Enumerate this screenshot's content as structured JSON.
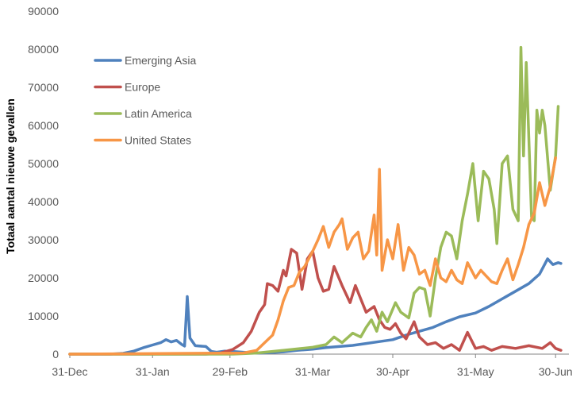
{
  "chart_data": {
    "type": "line",
    "ylabel": "Totaal aantal nieuwe gevallen",
    "xlabel": "",
    "ylim": [
      0,
      90000
    ],
    "yticks": [
      0,
      10000,
      20000,
      30000,
      40000,
      50000,
      60000,
      70000,
      80000,
      90000
    ],
    "ytick_labels": [
      "0",
      "10000",
      "20000",
      "30000",
      "40000",
      "50000",
      "60000",
      "70000",
      "80000",
      "90000"
    ],
    "xlim": [
      "2019-12-31",
      "2020-07-05"
    ],
    "xticks": [
      "2019-12-31",
      "2020-01-31",
      "2020-02-29",
      "2020-03-31",
      "2020-04-30",
      "2020-05-31",
      "2020-06-30"
    ],
    "xtick_labels": [
      "31-Dec",
      "31-Jan",
      "29-Feb",
      "31-Mar",
      "30-Apr",
      "31-May",
      "30-Jun"
    ],
    "grid": false,
    "legend_position": "top-left",
    "series": [
      {
        "name": "Emerging Asia",
        "color": "#4f81bd",
        "points": [
          [
            "2019-12-31",
            0
          ],
          [
            "2020-01-15",
            0
          ],
          [
            "2020-01-20",
            200
          ],
          [
            "2020-01-24",
            800
          ],
          [
            "2020-01-28",
            1800
          ],
          [
            "2020-01-31",
            2400
          ],
          [
            "2020-02-03",
            3000
          ],
          [
            "2020-02-05",
            3800
          ],
          [
            "2020-02-07",
            3200
          ],
          [
            "2020-02-09",
            3600
          ],
          [
            "2020-02-11",
            2500
          ],
          [
            "2020-02-12",
            2100
          ],
          [
            "2020-02-13",
            15100
          ],
          [
            "2020-02-14",
            4200
          ],
          [
            "2020-02-16",
            2200
          ],
          [
            "2020-02-20",
            2000
          ],
          [
            "2020-02-22",
            700
          ],
          [
            "2020-02-24",
            500
          ],
          [
            "2020-02-27",
            800
          ],
          [
            "2020-03-01",
            700
          ],
          [
            "2020-03-05",
            500
          ],
          [
            "2020-03-10",
            300
          ],
          [
            "2020-03-15",
            400
          ],
          [
            "2020-03-20",
            600
          ],
          [
            "2020-03-25",
            1000
          ],
          [
            "2020-03-31",
            1300
          ],
          [
            "2020-04-05",
            1700
          ],
          [
            "2020-04-10",
            2000
          ],
          [
            "2020-04-15",
            2300
          ],
          [
            "2020-04-20",
            2800
          ],
          [
            "2020-04-25",
            3300
          ],
          [
            "2020-04-30",
            3800
          ],
          [
            "2020-05-05",
            5000
          ],
          [
            "2020-05-10",
            6000
          ],
          [
            "2020-05-15",
            7000
          ],
          [
            "2020-05-20",
            8500
          ],
          [
            "2020-05-25",
            9800
          ],
          [
            "2020-05-31",
            10800
          ],
          [
            "2020-06-05",
            12500
          ],
          [
            "2020-06-10",
            14500
          ],
          [
            "2020-06-15",
            16500
          ],
          [
            "2020-06-20",
            18500
          ],
          [
            "2020-06-24",
            21000
          ],
          [
            "2020-06-27",
            25000
          ],
          [
            "2020-06-29",
            23500
          ],
          [
            "2020-07-01",
            24000
          ],
          [
            "2020-07-02",
            23800
          ]
        ]
      },
      {
        "name": "Europe",
        "color": "#c0504d",
        "points": [
          [
            "2019-12-31",
            0
          ],
          [
            "2020-02-20",
            0
          ],
          [
            "2020-02-25",
            200
          ],
          [
            "2020-03-01",
            1200
          ],
          [
            "2020-03-05",
            3000
          ],
          [
            "2020-03-08",
            6000
          ],
          [
            "2020-03-11",
            11000
          ],
          [
            "2020-03-13",
            13000
          ],
          [
            "2020-03-14",
            18500
          ],
          [
            "2020-03-16",
            18000
          ],
          [
            "2020-03-18",
            16500
          ],
          [
            "2020-03-20",
            22000
          ],
          [
            "2020-03-21",
            20500
          ],
          [
            "2020-03-23",
            27500
          ],
          [
            "2020-03-25",
            26500
          ],
          [
            "2020-03-27",
            17000
          ],
          [
            "2020-03-29",
            25000
          ],
          [
            "2020-03-31",
            27000
          ],
          [
            "2020-04-02",
            20000
          ],
          [
            "2020-04-04",
            16500
          ],
          [
            "2020-04-06",
            17000
          ],
          [
            "2020-04-08",
            23000
          ],
          [
            "2020-04-11",
            18000
          ],
          [
            "2020-04-14",
            13500
          ],
          [
            "2020-04-16",
            18000
          ],
          [
            "2020-04-18",
            14500
          ],
          [
            "2020-04-20",
            11000
          ],
          [
            "2020-04-23",
            12500
          ],
          [
            "2020-04-25",
            9000
          ],
          [
            "2020-04-27",
            7000
          ],
          [
            "2020-04-29",
            6500
          ],
          [
            "2020-05-01",
            8000
          ],
          [
            "2020-05-03",
            5500
          ],
          [
            "2020-05-05",
            4000
          ],
          [
            "2020-05-08",
            8500
          ],
          [
            "2020-05-10",
            4500
          ],
          [
            "2020-05-13",
            2500
          ],
          [
            "2020-05-16",
            3000
          ],
          [
            "2020-05-19",
            1500
          ],
          [
            "2020-05-22",
            2500
          ],
          [
            "2020-05-25",
            1000
          ],
          [
            "2020-05-28",
            5700
          ],
          [
            "2020-05-31",
            1500
          ],
          [
            "2020-06-03",
            2000
          ],
          [
            "2020-06-06",
            1000
          ],
          [
            "2020-06-10",
            2000
          ],
          [
            "2020-06-15",
            1500
          ],
          [
            "2020-06-20",
            2200
          ],
          [
            "2020-06-25",
            1500
          ],
          [
            "2020-06-28",
            3000
          ],
          [
            "2020-06-30",
            1500
          ],
          [
            "2020-07-02",
            1000
          ]
        ]
      },
      {
        "name": "Latin America",
        "color": "#9bbb59",
        "points": [
          [
            "2019-12-31",
            0
          ],
          [
            "2020-03-01",
            0
          ],
          [
            "2020-03-10",
            300
          ],
          [
            "2020-03-20",
            1000
          ],
          [
            "2020-03-31",
            1800
          ],
          [
            "2020-04-05",
            2500
          ],
          [
            "2020-04-08",
            4500
          ],
          [
            "2020-04-11",
            3000
          ],
          [
            "2020-04-15",
            5500
          ],
          [
            "2020-04-18",
            4500
          ],
          [
            "2020-04-20",
            7000
          ],
          [
            "2020-04-22",
            9000
          ],
          [
            "2020-04-24",
            6000
          ],
          [
            "2020-04-26",
            11000
          ],
          [
            "2020-04-28",
            8500
          ],
          [
            "2020-05-01",
            13500
          ],
          [
            "2020-05-03",
            11000
          ],
          [
            "2020-05-06",
            9500
          ],
          [
            "2020-05-08",
            16000
          ],
          [
            "2020-05-10",
            17500
          ],
          [
            "2020-05-12",
            17000
          ],
          [
            "2020-05-14",
            10000
          ],
          [
            "2020-05-16",
            20000
          ],
          [
            "2020-05-18",
            28000
          ],
          [
            "2020-05-20",
            32000
          ],
          [
            "2020-05-22",
            31000
          ],
          [
            "2020-05-24",
            25000
          ],
          [
            "2020-05-26",
            35000
          ],
          [
            "2020-05-28",
            42000
          ],
          [
            "2020-05-30",
            50000
          ],
          [
            "2020-06-01",
            35000
          ],
          [
            "2020-06-03",
            48000
          ],
          [
            "2020-06-05",
            46000
          ],
          [
            "2020-06-07",
            38000
          ],
          [
            "2020-06-08",
            29000
          ],
          [
            "2020-06-10",
            50000
          ],
          [
            "2020-06-12",
            52000
          ],
          [
            "2020-06-14",
            38000
          ],
          [
            "2020-06-16",
            35000
          ],
          [
            "2020-06-17",
            80500
          ],
          [
            "2020-06-18",
            52000
          ],
          [
            "2020-06-19",
            76500
          ],
          [
            "2020-06-21",
            36000
          ],
          [
            "2020-06-22",
            35000
          ],
          [
            "2020-06-23",
            64000
          ],
          [
            "2020-06-24",
            58000
          ],
          [
            "2020-06-25",
            64000
          ],
          [
            "2020-06-26",
            60000
          ],
          [
            "2020-06-28",
            43000
          ],
          [
            "2020-06-30",
            52000
          ],
          [
            "2020-07-01",
            65000
          ]
        ]
      },
      {
        "name": "United States",
        "color": "#f79646",
        "points": [
          [
            "2019-12-31",
            0
          ],
          [
            "2020-03-05",
            300
          ],
          [
            "2020-03-10",
            1000
          ],
          [
            "2020-03-13",
            3000
          ],
          [
            "2020-03-16",
            5000
          ],
          [
            "2020-03-18",
            9000
          ],
          [
            "2020-03-20",
            14000
          ],
          [
            "2020-03-22",
            17500
          ],
          [
            "2020-03-24",
            18000
          ],
          [
            "2020-03-26",
            21500
          ],
          [
            "2020-03-28",
            23000
          ],
          [
            "2020-03-31",
            27000
          ],
          [
            "2020-04-02",
            30000
          ],
          [
            "2020-04-04",
            33500
          ],
          [
            "2020-04-06",
            28000
          ],
          [
            "2020-04-08",
            32000
          ],
          [
            "2020-04-10",
            34000
          ],
          [
            "2020-04-11",
            35500
          ],
          [
            "2020-04-13",
            27500
          ],
          [
            "2020-04-15",
            30500
          ],
          [
            "2020-04-17",
            32000
          ],
          [
            "2020-04-19",
            25000
          ],
          [
            "2020-04-21",
            27000
          ],
          [
            "2020-04-23",
            36500
          ],
          [
            "2020-04-24",
            26000
          ],
          [
            "2020-04-25",
            48500
          ],
          [
            "2020-04-26",
            22000
          ],
          [
            "2020-04-28",
            30000
          ],
          [
            "2020-04-30",
            25000
          ],
          [
            "2020-05-02",
            34000
          ],
          [
            "2020-05-04",
            22000
          ],
          [
            "2020-05-06",
            28000
          ],
          [
            "2020-05-08",
            26000
          ],
          [
            "2020-05-10",
            21000
          ],
          [
            "2020-05-12",
            22000
          ],
          [
            "2020-05-14",
            18000
          ],
          [
            "2020-05-16",
            25000
          ],
          [
            "2020-05-18",
            20000
          ],
          [
            "2020-05-20",
            19000
          ],
          [
            "2020-05-22",
            22000
          ],
          [
            "2020-05-24",
            19500
          ],
          [
            "2020-05-26",
            18500
          ],
          [
            "2020-05-28",
            24000
          ],
          [
            "2020-05-31",
            20000
          ],
          [
            "2020-06-02",
            22000
          ],
          [
            "2020-06-04",
            20500
          ],
          [
            "2020-06-06",
            19000
          ],
          [
            "2020-06-08",
            18500
          ],
          [
            "2020-06-10",
            22000
          ],
          [
            "2020-06-12",
            25000
          ],
          [
            "2020-06-14",
            19500
          ],
          [
            "2020-06-16",
            23500
          ],
          [
            "2020-06-18",
            28000
          ],
          [
            "2020-06-20",
            34000
          ],
          [
            "2020-06-22",
            37000
          ],
          [
            "2020-06-24",
            45000
          ],
          [
            "2020-06-26",
            39000
          ],
          [
            "2020-06-28",
            44000
          ],
          [
            "2020-06-30",
            51500
          ]
        ]
      }
    ]
  }
}
